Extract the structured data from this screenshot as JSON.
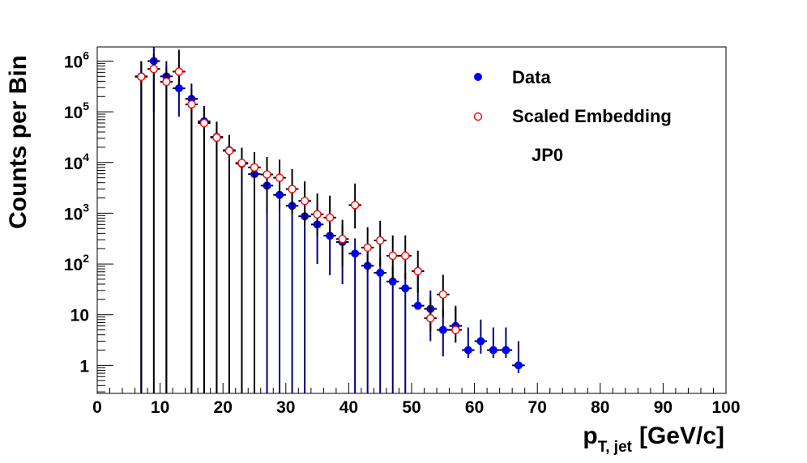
{
  "chart_data": {
    "type": "scatter",
    "xlabel": "p",
    "xlabel_sub": "T, jet",
    "xlabel_units": "[GeV/c]",
    "ylabel": "Counts per Bin",
    "xlim": [
      0,
      100
    ],
    "ylim": [
      0.28,
      1900000
    ],
    "y_scale": "log",
    "x_ticks": [
      "0",
      "10",
      "20",
      "30",
      "40",
      "50",
      "60",
      "70",
      "80",
      "90",
      "100"
    ],
    "y_ticks": [
      {
        "value": 1000000,
        "base": "10",
        "exp": "6"
      },
      {
        "value": 100000,
        "base": "10",
        "exp": "5"
      },
      {
        "value": 10000,
        "base": "10",
        "exp": "4"
      },
      {
        "value": 1000,
        "base": "10",
        "exp": "3"
      },
      {
        "value": 100,
        "base": "10",
        "exp": "2"
      },
      {
        "value": 10,
        "base": "10",
        "exp": ""
      },
      {
        "value": 1,
        "base": "1",
        "exp": ""
      }
    ],
    "legend_position": "top-right",
    "annotation": "JP0",
    "grid": false,
    "series": [
      {
        "name": "Data",
        "marker": "filled-circle",
        "color": "#0000ff",
        "points": [
          {
            "x": 7,
            "y": 500000,
            "yerr": [
              500000,
              500000
            ]
          },
          {
            "x": 9,
            "y": 1000000,
            "yerr": [
              900000,
              1150000
            ]
          },
          {
            "x": 11,
            "y": 500000,
            "yerr": [
              500000,
              500000
            ]
          },
          {
            "x": 13,
            "y": 290000,
            "yerr": [
              210000,
              390000
            ]
          },
          {
            "x": 15,
            "y": 180000,
            "yerr": [
              180000,
              180000
            ]
          },
          {
            "x": 17,
            "y": 65000,
            "yerr": [
              65000,
              65000
            ]
          },
          {
            "x": 19,
            "y": 32000,
            "yerr": [
              32000,
              32000
            ]
          },
          {
            "x": 21,
            "y": 17500,
            "yerr": [
              17500,
              17500
            ]
          },
          {
            "x": 23,
            "y": 9500,
            "yerr": [
              9500,
              9500
            ]
          },
          {
            "x": 25,
            "y": 5900,
            "yerr": [
              5900,
              5900
            ]
          },
          {
            "x": 27,
            "y": 3500,
            "yerr": [
              3500,
              3500
            ]
          },
          {
            "x": 29,
            "y": 2300,
            "yerr": [
              2300,
              2300
            ]
          },
          {
            "x": 31,
            "y": 1400,
            "yerr": [
              1400,
              1400
            ]
          },
          {
            "x": 33,
            "y": 870,
            "yerr": [
              870,
              870
            ]
          },
          {
            "x": 35,
            "y": 600,
            "yerr": [
              500,
              720
            ]
          },
          {
            "x": 37,
            "y": 360,
            "yerr": [
              300,
              420
            ]
          },
          {
            "x": 39,
            "y": 270,
            "yerr": [
              230,
              310
            ]
          },
          {
            "x": 41,
            "y": 160,
            "yerr": [
              160,
              160
            ]
          },
          {
            "x": 43,
            "y": 92,
            "yerr": [
              92,
              92
            ]
          },
          {
            "x": 45,
            "y": 67,
            "yerr": [
              67,
              67
            ]
          },
          {
            "x": 47,
            "y": 45,
            "yerr": [
              45,
              45
            ]
          },
          {
            "x": 49,
            "y": 33,
            "yerr": [
              33,
              33
            ]
          },
          {
            "x": 51,
            "y": 15,
            "yerr": [
              0.28,
              50
            ]
          },
          {
            "x": 53,
            "y": 13,
            "yerr": [
              10,
              17
            ]
          },
          {
            "x": 55,
            "y": 5,
            "yerr": [
              3.5,
              8
            ]
          },
          {
            "x": 57,
            "y": 6,
            "yerr": [
              0.28,
              9
            ]
          },
          {
            "x": 59,
            "y": 2,
            "yerr": [
              0.6,
              3.6
            ]
          },
          {
            "x": 61,
            "y": 3,
            "yerr": [
              1.3,
              5
            ]
          },
          {
            "x": 63,
            "y": 2,
            "yerr": [
              0.6,
              3.6
            ]
          },
          {
            "x": 65,
            "y": 2,
            "yerr": [
              0.6,
              3.6
            ]
          },
          {
            "x": 67,
            "y": 1,
            "yerr": [
              0.3,
              2
            ]
          }
        ]
      },
      {
        "name": "Scaled Embedding",
        "marker": "open-circle",
        "color": "#ff0000",
        "points": [
          {
            "x": 7,
            "y": 490000,
            "yerr": [
              490000,
              490000
            ]
          },
          {
            "x": 9,
            "y": 700000,
            "yerr": [
              700000,
              700000
            ]
          },
          {
            "x": 11,
            "y": 390000,
            "yerr": [
              390000,
              390000
            ]
          },
          {
            "x": 13,
            "y": 620000,
            "yerr": [
              280000,
              1050000
            ]
          },
          {
            "x": 15,
            "y": 140000,
            "yerr": [
              140000,
              140000
            ]
          },
          {
            "x": 17,
            "y": 60000,
            "yerr": [
              60000,
              60000
            ]
          },
          {
            "x": 19,
            "y": 31000,
            "yerr": [
              31000,
              31000
            ]
          },
          {
            "x": 21,
            "y": 17000,
            "yerr": [
              17000,
              17000
            ]
          },
          {
            "x": 23,
            "y": 9800,
            "yerr": [
              9800,
              9800
            ]
          },
          {
            "x": 25,
            "y": 8000,
            "yerr": [
              8000,
              8000
            ]
          },
          {
            "x": 27,
            "y": 5800,
            "yerr": [
              4800,
              7000
            ]
          },
          {
            "x": 29,
            "y": 5000,
            "yerr": [
              3800,
              6400
            ]
          },
          {
            "x": 31,
            "y": 3000,
            "yerr": [
              2000,
              4400
            ]
          },
          {
            "x": 33,
            "y": 1750,
            "yerr": [
              1200,
              2500
            ]
          },
          {
            "x": 35,
            "y": 950,
            "yerr": [
              600,
              1500
            ]
          },
          {
            "x": 37,
            "y": 820,
            "yerr": [
              480,
              1400
            ]
          },
          {
            "x": 39,
            "y": 310,
            "yerr": [
              220,
              430
            ]
          },
          {
            "x": 41,
            "y": 1450,
            "yerr": [
              950,
              2400
            ]
          },
          {
            "x": 43,
            "y": 210,
            "yerr": [
              140,
              320
            ]
          },
          {
            "x": 45,
            "y": 290,
            "yerr": [
              200,
              420
            ]
          },
          {
            "x": 47,
            "y": 145,
            "yerr": [
              95,
              220
            ]
          },
          {
            "x": 49,
            "y": 145,
            "yerr": [
              95,
              220
            ]
          },
          {
            "x": 51,
            "y": 72,
            "yerr": [
              45,
              110
            ]
          },
          {
            "x": 53,
            "y": 8.5,
            "yerr": [
              3.8,
              14
            ]
          },
          {
            "x": 55,
            "y": 25,
            "yerr": [
              16,
              36
            ]
          },
          {
            "x": 57,
            "y": 5,
            "yerr": [
              2.2,
              9
            ]
          }
        ]
      }
    ]
  }
}
